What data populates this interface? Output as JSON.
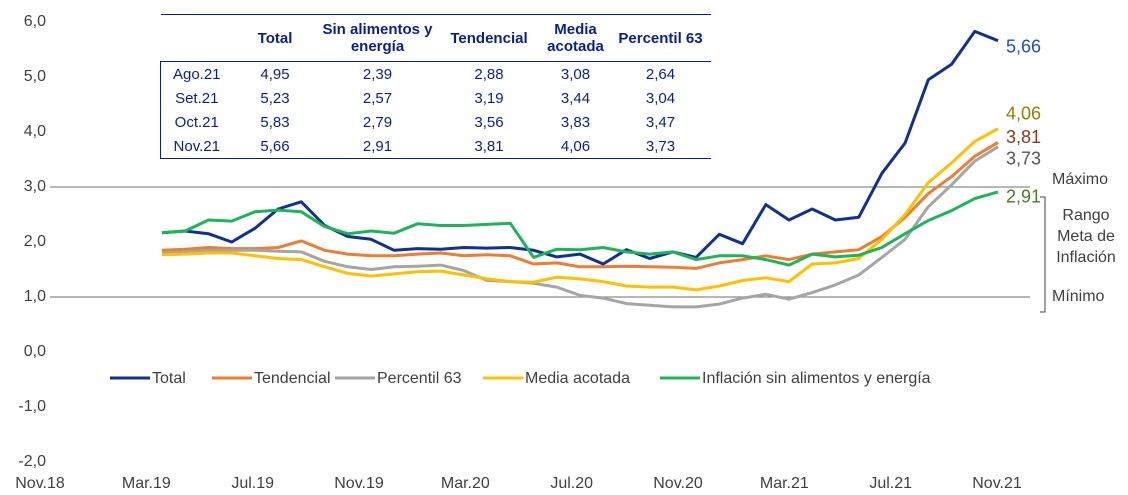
{
  "chart_data": {
    "type": "line",
    "categories": [
      "Nov.18",
      null,
      null,
      null,
      "Mar.19",
      null,
      null,
      null,
      "Jul.19",
      null,
      null,
      null,
      "Nov.19",
      null,
      null,
      null,
      "Mar.20",
      null,
      null,
      null,
      "Jul.20",
      null,
      null,
      null,
      "Nov.20",
      null,
      null,
      null,
      "Mar.21",
      null,
      null,
      null,
      "Jul.21",
      null,
      null,
      null,
      "Nov.21"
    ],
    "ylim": [
      -2,
      6
    ],
    "yticks": [
      {
        "value": -2,
        "label": "-2,0"
      },
      {
        "value": -1,
        "label": "-1,0"
      },
      {
        "value": 0,
        "label": "0,0"
      },
      {
        "value": 1,
        "label": "1,0"
      },
      {
        "value": 2,
        "label": "2,0"
      },
      {
        "value": 3,
        "label": "3,0"
      },
      {
        "value": 4,
        "label": "4,0"
      },
      {
        "value": 5,
        "label": "5,0"
      },
      {
        "value": 6,
        "label": "6,0"
      }
    ],
    "target_range": [
      1,
      3
    ],
    "annotations": {
      "max": "Máximo",
      "range": [
        "Rango",
        "Meta de",
        "Inflación"
      ],
      "min": "Mínimo"
    },
    "legend": "inside-middle",
    "series": [
      {
        "name": "Total",
        "color": "#10318f",
        "label_color": "#1f4fbf",
        "values": [
          2.17,
          2.2,
          2.15,
          2.0,
          2.25,
          2.6,
          2.73,
          2.3,
          2.1,
          2.05,
          1.85,
          1.88,
          1.87,
          1.9,
          1.89,
          1.9,
          1.85,
          1.73,
          1.78,
          1.6,
          1.86,
          1.7,
          1.82,
          1.72,
          2.14,
          1.97,
          2.68,
          2.4,
          2.6,
          2.4,
          2.45,
          3.25,
          3.8,
          4.95,
          5.23,
          5.83,
          5.66
        ],
        "value_labels": [
          null,
          null,
          null,
          null,
          null,
          null,
          null,
          null,
          null,
          null,
          null,
          null,
          null,
          null,
          null,
          null,
          null,
          null,
          null,
          null,
          null,
          null,
          null,
          null,
          null,
          null,
          null,
          null,
          null,
          null,
          null,
          null,
          null,
          null,
          null,
          null,
          "5,66"
        ]
      },
      {
        "name": "Tendencial",
        "color": "#ed7d31",
        "label_color": "#8b3a1a",
        "values": [
          1.85,
          1.87,
          1.9,
          1.88,
          1.88,
          1.9,
          2.02,
          1.85,
          1.78,
          1.75,
          1.75,
          1.78,
          1.8,
          1.75,
          1.77,
          1.75,
          1.6,
          1.62,
          1.55,
          1.55,
          1.56,
          1.55,
          1.54,
          1.52,
          1.62,
          1.68,
          1.75,
          1.68,
          1.78,
          1.82,
          1.86,
          2.1,
          2.45,
          2.88,
          3.19,
          3.56,
          3.81
        ],
        "value_labels": [
          null,
          null,
          null,
          null,
          null,
          null,
          null,
          null,
          null,
          null,
          null,
          null,
          null,
          null,
          null,
          null,
          null,
          null,
          null,
          null,
          null,
          null,
          null,
          null,
          null,
          null,
          null,
          null,
          null,
          null,
          null,
          null,
          null,
          null,
          null,
          null,
          "3,81"
        ]
      },
      {
        "name": "Percentil 63",
        "color": "#a5a5a5",
        "label_color": "#555555",
        "values": [
          1.8,
          1.82,
          1.85,
          1.85,
          1.85,
          1.83,
          1.82,
          1.65,
          1.55,
          1.5,
          1.55,
          1.56,
          1.58,
          1.48,
          1.3,
          1.28,
          1.25,
          1.18,
          1.03,
          0.98,
          0.88,
          0.85,
          0.82,
          0.82,
          0.87,
          0.98,
          1.05,
          0.96,
          1.08,
          1.22,
          1.4,
          1.72,
          2.05,
          2.64,
          3.04,
          3.47,
          3.73
        ],
        "value_labels": [
          null,
          null,
          null,
          null,
          null,
          null,
          null,
          null,
          null,
          null,
          null,
          null,
          null,
          null,
          null,
          null,
          null,
          null,
          null,
          null,
          null,
          null,
          null,
          null,
          null,
          null,
          null,
          null,
          null,
          null,
          null,
          null,
          null,
          null,
          null,
          null,
          "3,73"
        ]
      },
      {
        "name": "Media acotada",
        "color": "#ffc000",
        "label_color": "#9c7a00",
        "values": [
          1.77,
          1.78,
          1.8,
          1.8,
          1.75,
          1.7,
          1.68,
          1.55,
          1.43,
          1.38,
          1.42,
          1.46,
          1.47,
          1.4,
          1.33,
          1.28,
          1.27,
          1.36,
          1.33,
          1.28,
          1.2,
          1.18,
          1.18,
          1.13,
          1.2,
          1.3,
          1.35,
          1.28,
          1.6,
          1.62,
          1.7,
          2.05,
          2.5,
          3.08,
          3.44,
          3.83,
          4.06
        ],
        "value_labels": [
          null,
          null,
          null,
          null,
          null,
          null,
          null,
          null,
          null,
          null,
          null,
          null,
          null,
          null,
          null,
          null,
          null,
          null,
          null,
          null,
          null,
          null,
          null,
          null,
          null,
          null,
          null,
          null,
          null,
          null,
          null,
          null,
          null,
          null,
          null,
          null,
          "4,06"
        ]
      },
      {
        "name": "Inflación sin alimentos y energía",
        "color": "#1fb35a",
        "label_color": "#4f7a28",
        "values": [
          2.17,
          2.2,
          2.4,
          2.38,
          2.55,
          2.58,
          2.55,
          2.28,
          2.15,
          2.2,
          2.16,
          2.33,
          2.3,
          2.3,
          2.32,
          2.34,
          1.72,
          1.87,
          1.86,
          1.9,
          1.82,
          1.78,
          1.82,
          1.68,
          1.75,
          1.75,
          1.68,
          1.58,
          1.78,
          1.73,
          1.76,
          1.9,
          2.15,
          2.39,
          2.57,
          2.79,
          2.91
        ],
        "value_labels": [
          null,
          null,
          null,
          null,
          null,
          null,
          null,
          null,
          null,
          null,
          null,
          null,
          null,
          null,
          null,
          null,
          null,
          null,
          null,
          null,
          null,
          null,
          null,
          null,
          null,
          null,
          null,
          null,
          null,
          null,
          null,
          null,
          null,
          null,
          null,
          null,
          "2,91"
        ]
      }
    ],
    "table": {
      "columns": [
        "Total",
        "Sin alimentos y energía",
        "Tendencial",
        "Media acotada",
        "Percentil 63"
      ],
      "rows": [
        [
          "Ago.21",
          "4,95",
          "2,39",
          "2,88",
          "3,08",
          "2,64"
        ],
        [
          "Set.21",
          "5,23",
          "2,57",
          "3,19",
          "3,44",
          "3,04"
        ],
        [
          "Oct.21",
          "5,83",
          "2,79",
          "3,56",
          "3,83",
          "3,47"
        ],
        [
          "Nov.21",
          "5,66",
          "2,91",
          "3,81",
          "4,06",
          "3,73"
        ]
      ]
    }
  }
}
